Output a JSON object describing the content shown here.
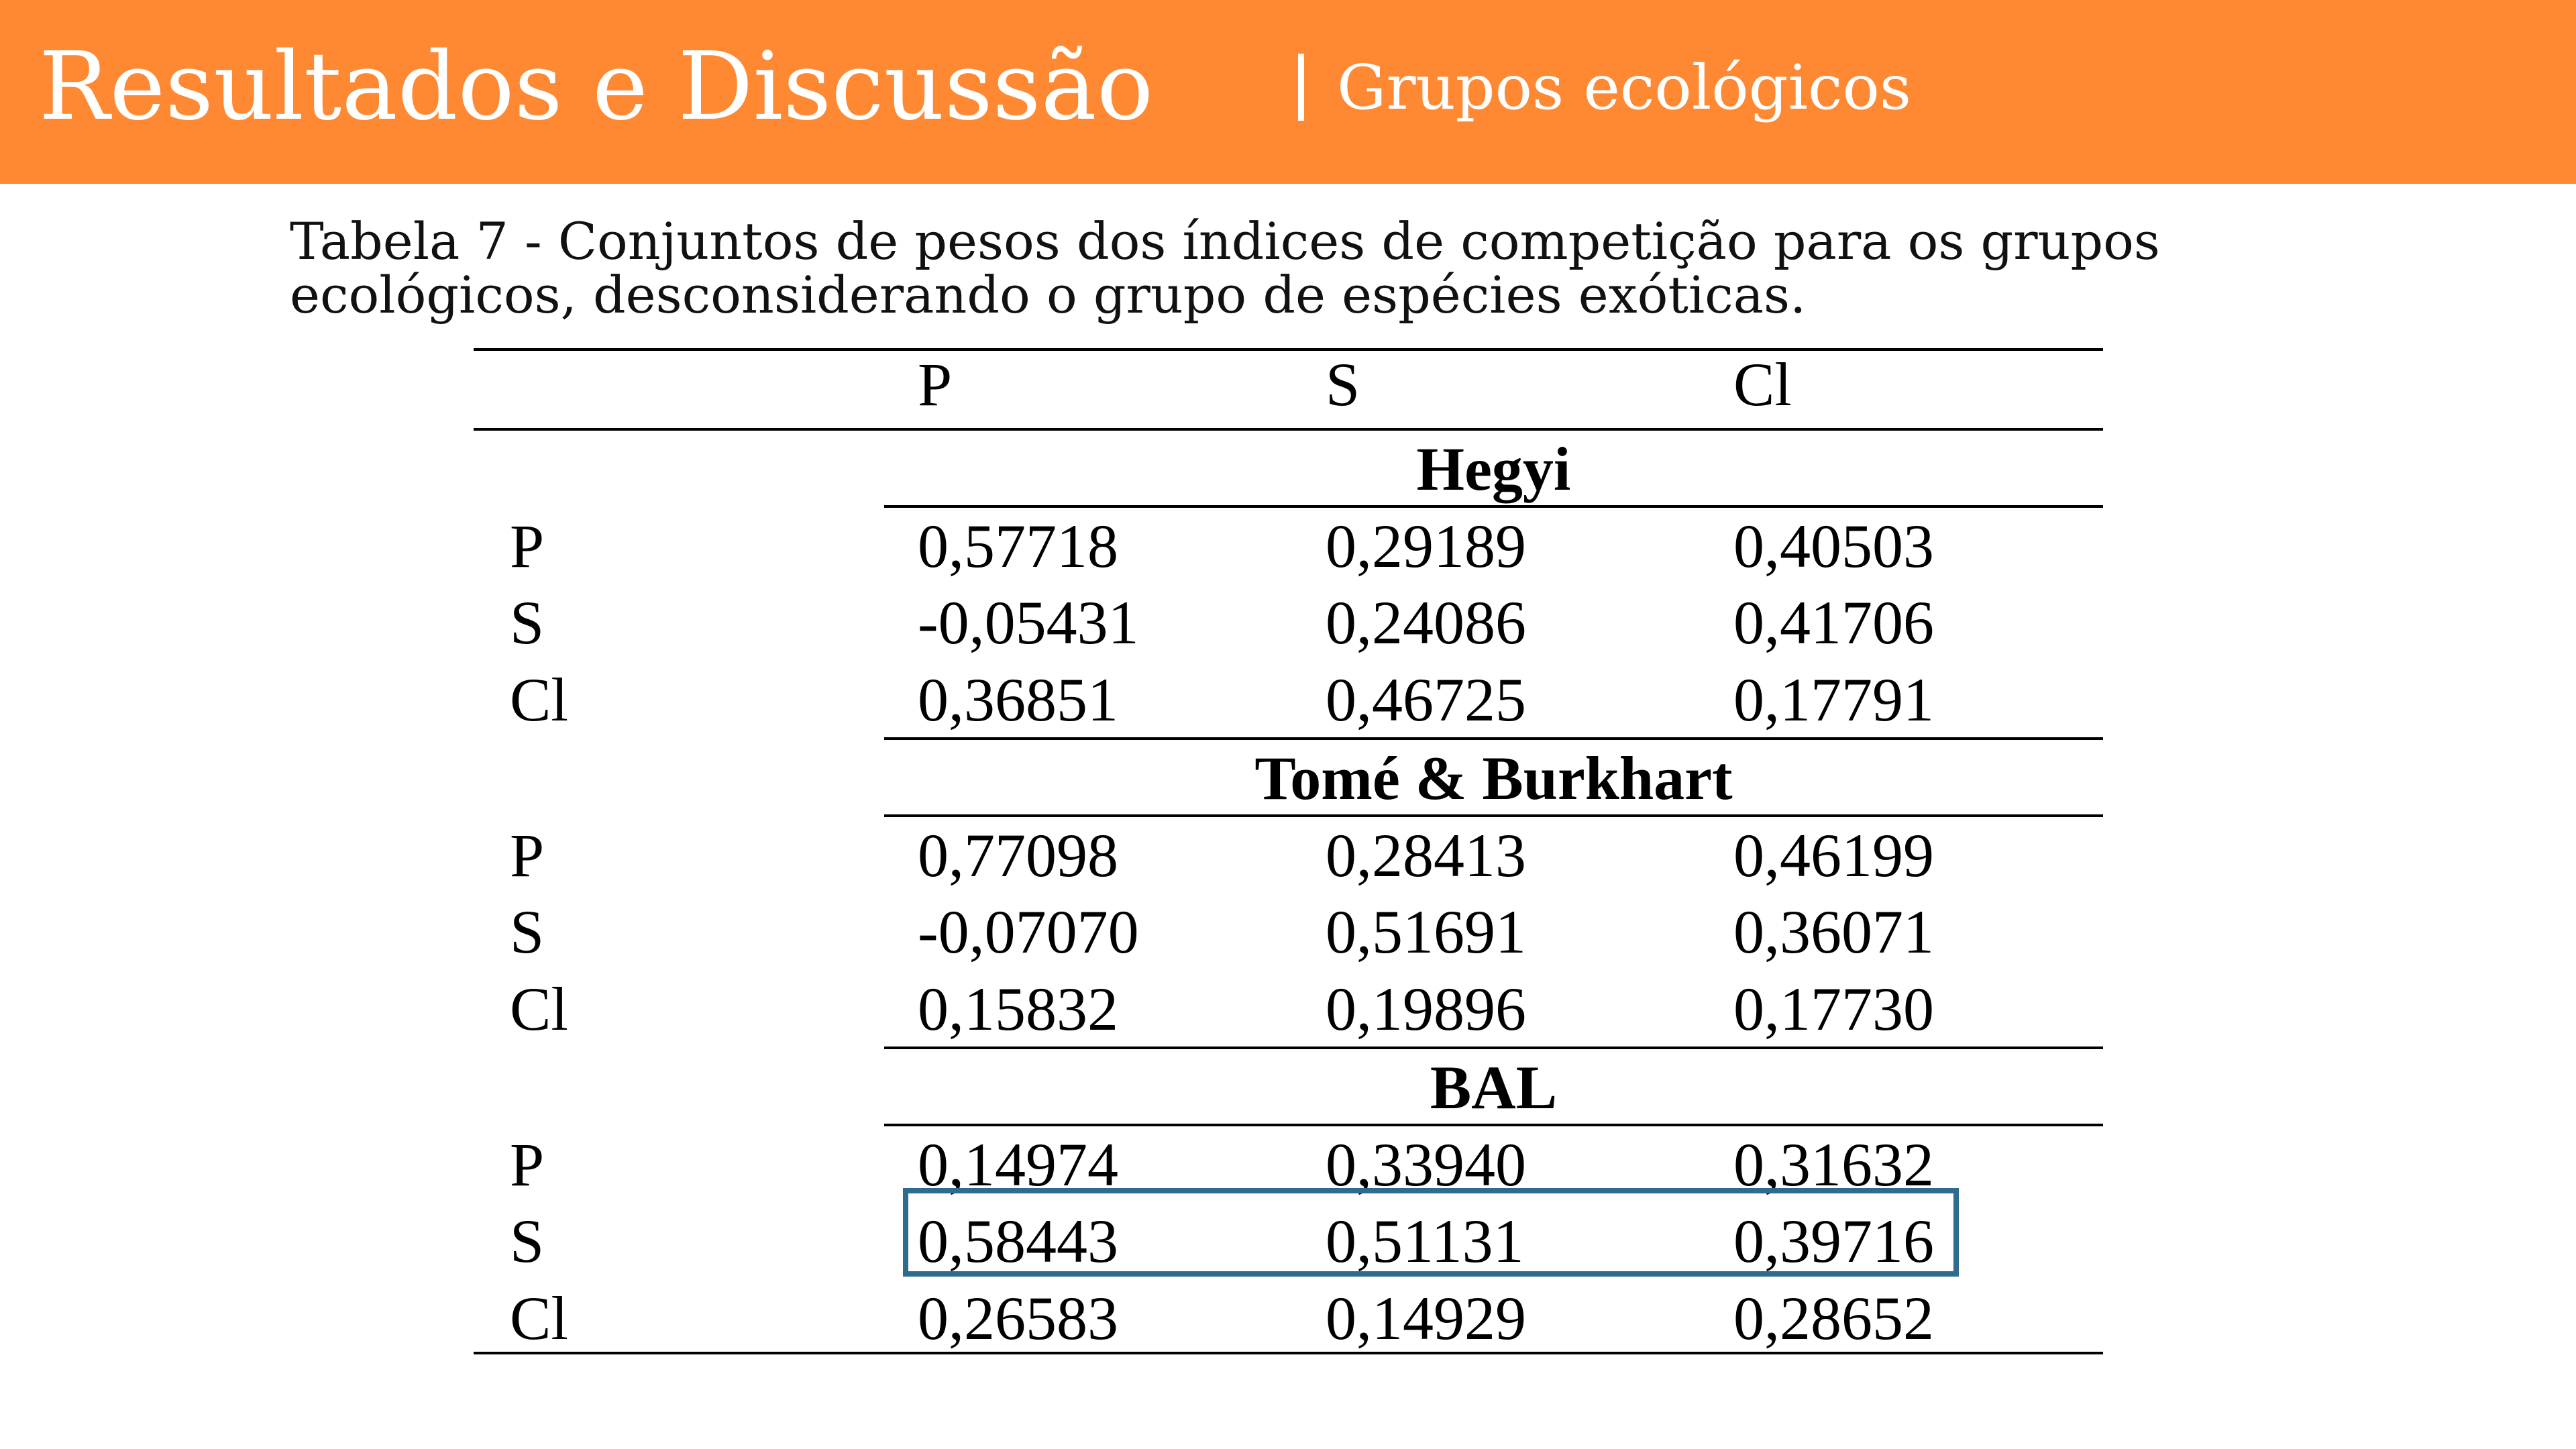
{
  "header": {
    "title": "Resultados e Discussão",
    "subtitle": "Grupos ecológicos",
    "background_color": "#ff8833"
  },
  "caption": {
    "line1": "Tabela 7 - Conjuntos de pesos dos índices de competição para os grupos",
    "line2": "ecológicos, desconsiderando o grupo de espécies exóticas."
  },
  "table": {
    "columns": [
      "P",
      "S",
      "Cl"
    ],
    "groups": [
      {
        "title": "Hegyi",
        "rows": [
          {
            "label": "P",
            "values": [
              "0,57718",
              "0,29189",
              "0,40503"
            ]
          },
          {
            "label": "S",
            "values": [
              "-0,05431",
              "0,24086",
              "0,41706"
            ]
          },
          {
            "label": "Cl",
            "values": [
              "0,36851",
              "0,46725",
              "0,17791"
            ]
          }
        ]
      },
      {
        "title": "Tomé & Burkhart",
        "rows": [
          {
            "label": "P",
            "values": [
              "0,77098",
              "0,28413",
              "0,46199"
            ]
          },
          {
            "label": "S",
            "values": [
              "-0,07070",
              "0,51691",
              "0,36071"
            ]
          },
          {
            "label": "Cl",
            "values": [
              "0,15832",
              "0,19896",
              "0,17730"
            ]
          }
        ]
      },
      {
        "title": "BAL",
        "rows": [
          {
            "label": "P",
            "values": [
              "0,14974",
              "0,33940",
              "0,31632"
            ]
          },
          {
            "label": "S",
            "values": [
              "0,58443",
              "0,51131",
              "0,39716"
            ]
          },
          {
            "label": "Cl",
            "values": [
              "0,26583",
              "0,14929",
              "0,28652"
            ]
          }
        ]
      }
    ],
    "highlight_color": "#2e6b8f"
  }
}
